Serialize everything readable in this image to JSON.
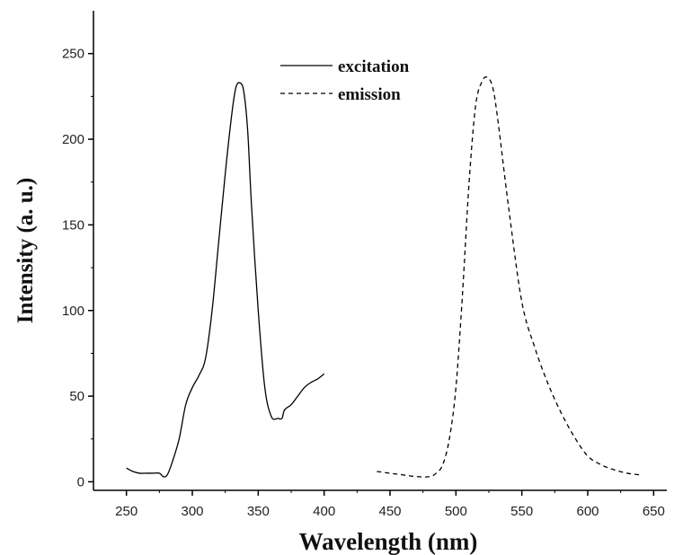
{
  "chart_data": {
    "type": "line",
    "xlabel": "Wavelength (nm)",
    "ylabel": "Intensity (a. u.)",
    "xlim": [
      225,
      660
    ],
    "ylim": [
      -5,
      275
    ],
    "xticks": [
      250,
      300,
      350,
      400,
      450,
      500,
      550,
      600,
      650
    ],
    "yticks": [
      0,
      50,
      100,
      150,
      200,
      250
    ],
    "xtick_labels": [
      "250",
      "300",
      "350",
      "400",
      "450",
      "500",
      "550",
      "600",
      "650"
    ],
    "ytick_labels": [
      "0",
      "50",
      "100",
      "150",
      "200",
      "250"
    ],
    "legend_position": "top-center",
    "grid": false,
    "series": [
      {
        "name": "excitation",
        "style": "solid",
        "color": "#000000",
        "x": [
          250,
          255,
          260,
          265,
          270,
          275,
          278,
          281,
          285,
          290,
          295,
          300,
          305,
          310,
          315,
          320,
          325,
          330,
          333,
          336,
          339,
          342,
          345,
          350,
          355,
          360,
          365,
          368,
          370,
          375,
          380,
          385,
          390,
          395,
          400
        ],
        "y": [
          8,
          6,
          5,
          5,
          5,
          5,
          3,
          4,
          12,
          25,
          45,
          55,
          62,
          72,
          100,
          140,
          180,
          215,
          230,
          233,
          228,
          205,
          160,
          100,
          55,
          38,
          37,
          37,
          42,
          45,
          50,
          55,
          58,
          60,
          63
        ]
      },
      {
        "name": "emission",
        "style": "dashed",
        "color": "#000000",
        "x": [
          440,
          450,
          460,
          470,
          480,
          485,
          490,
          495,
          500,
          505,
          510,
          515,
          520,
          524,
          528,
          532,
          540,
          550,
          560,
          570,
          580,
          590,
          600,
          610,
          620,
          630,
          640
        ],
        "y": [
          6,
          5,
          4,
          3,
          3,
          5,
          10,
          25,
          55,
          110,
          175,
          220,
          234,
          236,
          230,
          210,
          160,
          105,
          78,
          57,
          40,
          26,
          15,
          10,
          7,
          5,
          4
        ]
      }
    ]
  }
}
